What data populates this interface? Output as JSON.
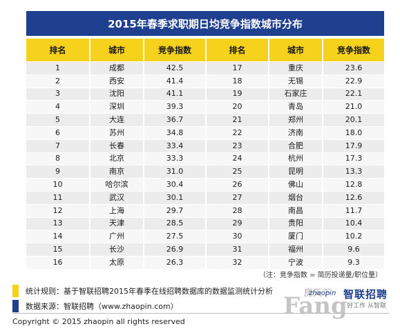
{
  "title": "2015年春季求职期日均竞争指数城市分布",
  "headers": [
    "排名",
    "城市",
    "竞争指数",
    "排名",
    "城市",
    "竞争指数"
  ],
  "rows": [
    [
      "1",
      "成都",
      "42.5",
      "17",
      "重庆",
      "23.6"
    ],
    [
      "2",
      "西安",
      "41.4",
      "18",
      "无锡",
      "22.9"
    ],
    [
      "3",
      "沈阳",
      "41.1",
      "19",
      "石家庄",
      "22.1"
    ],
    [
      "4",
      "深圳",
      "39.3",
      "20",
      "青岛",
      "21.0"
    ],
    [
      "5",
      "大连",
      "36.7",
      "21",
      "郑州",
      "20.1"
    ],
    [
      "6",
      "苏州",
      "34.8",
      "22",
      "济南",
      "18.0"
    ],
    [
      "7",
      "长春",
      "33.4",
      "23",
      "合肥",
      "17.9"
    ],
    [
      "8",
      "北京",
      "33.3",
      "24",
      "杭州",
      "17.3"
    ],
    [
      "9",
      "南京",
      "31.0",
      "25",
      "昆明",
      "13.3"
    ],
    [
      "10",
      "哈尔滨",
      "30.4",
      "26",
      "佛山",
      "12.8"
    ],
    [
      "11",
      "武汉",
      "30.1",
      "27",
      "烟台",
      "12.6"
    ],
    [
      "12",
      "上海",
      "29.7",
      "28",
      "南昌",
      "11.7"
    ],
    [
      "13",
      "天津",
      "28.5",
      "29",
      "贵阳",
      "10.4"
    ],
    [
      "14",
      "广州",
      "27.5",
      "30",
      "厦门",
      "10.2"
    ],
    [
      "15",
      "长沙",
      "26.9",
      "31",
      "福州",
      "9.6"
    ],
    [
      "16",
      "太原",
      "26.3",
      "32",
      "宁波",
      "9.3"
    ]
  ],
  "note": "（注：竞争指数 = 简历投递量/职位量）",
  "legend": {
    "rule": "统计规则：基于智联招聘2015年春季在线招聘数据库的数据监测统计分析",
    "source": "数据来源：智联招聘（www.zhaopin.com）"
  },
  "copyright": "Copyright   ©   2015 zhaopin all rights reserved",
  "logo": {
    "brand": "智联招聘",
    "domain": "zhaopin",
    "tagline": "好工作 从智联"
  },
  "watermark": {
    "big": "Fang",
    "small": "房天下"
  },
  "colors": {
    "title_bg": "#1f3f8f",
    "header_bg": "#f6d21c",
    "row_bg": "#ececec",
    "row_alt_bg": "#f7f7f7"
  }
}
